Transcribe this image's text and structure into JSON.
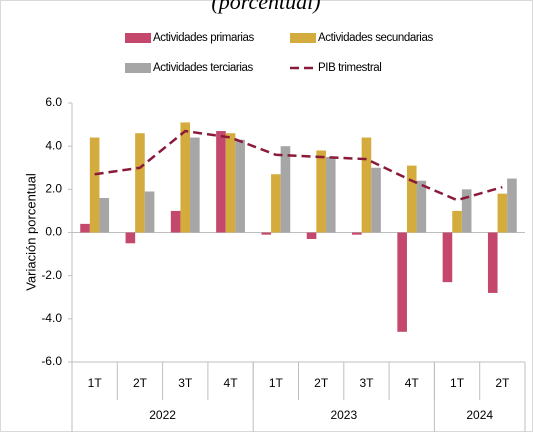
{
  "chart_data": {
    "type": "bar",
    "subtitle": "(porcentual)",
    "y_label": "Variación porcentual",
    "categories": [
      "1T",
      "2T",
      "3T",
      "4T",
      "1T",
      "2T",
      "3T",
      "4T",
      "1T",
      "2T"
    ],
    "groups": [
      {
        "label": "2022",
        "size": 4
      },
      {
        "label": "2023",
        "size": 4
      },
      {
        "label": "2024",
        "size": 2
      }
    ],
    "series": [
      {
        "name": "Actividades primarias",
        "color": "#c4476c",
        "kind": "bar",
        "values": [
          0.4,
          -0.5,
          1.0,
          4.7,
          -0.1,
          -0.3,
          -0.1,
          -4.6,
          -2.3,
          -2.8
        ]
      },
      {
        "name": "Actividades secundarias",
        "color": "#d4ac3d",
        "kind": "bar",
        "values": [
          4.4,
          4.6,
          5.1,
          4.6,
          2.7,
          3.8,
          4.4,
          3.1,
          1.0,
          1.8
        ]
      },
      {
        "name": "Actividades terciarias",
        "color": "#a6a6a6",
        "kind": "bar",
        "values": [
          1.6,
          1.9,
          4.4,
          4.3,
          4.0,
          3.5,
          3.0,
          2.4,
          2.0,
          2.5
        ]
      },
      {
        "name": "PIB trimestral",
        "color": "#8b1a3a",
        "kind": "line",
        "dashed": true,
        "values": [
          2.7,
          3.0,
          4.7,
          4.4,
          3.6,
          3.5,
          3.4,
          2.4,
          1.5,
          2.1
        ]
      }
    ],
    "ylim": [
      -6,
      6
    ],
    "yticks": [
      {
        "value": -6,
        "label": "-6.0"
      },
      {
        "value": -4,
        "label": "-4.0"
      },
      {
        "value": -2,
        "label": "-2.0"
      },
      {
        "value": 0,
        "label": "0.0"
      },
      {
        "value": 2,
        "label": "2.0"
      },
      {
        "value": 4,
        "label": "4.0"
      },
      {
        "value": 6,
        "label": "6.0"
      }
    ],
    "negative_tick_color": "#e00000",
    "grid": false,
    "legend": "top"
  }
}
